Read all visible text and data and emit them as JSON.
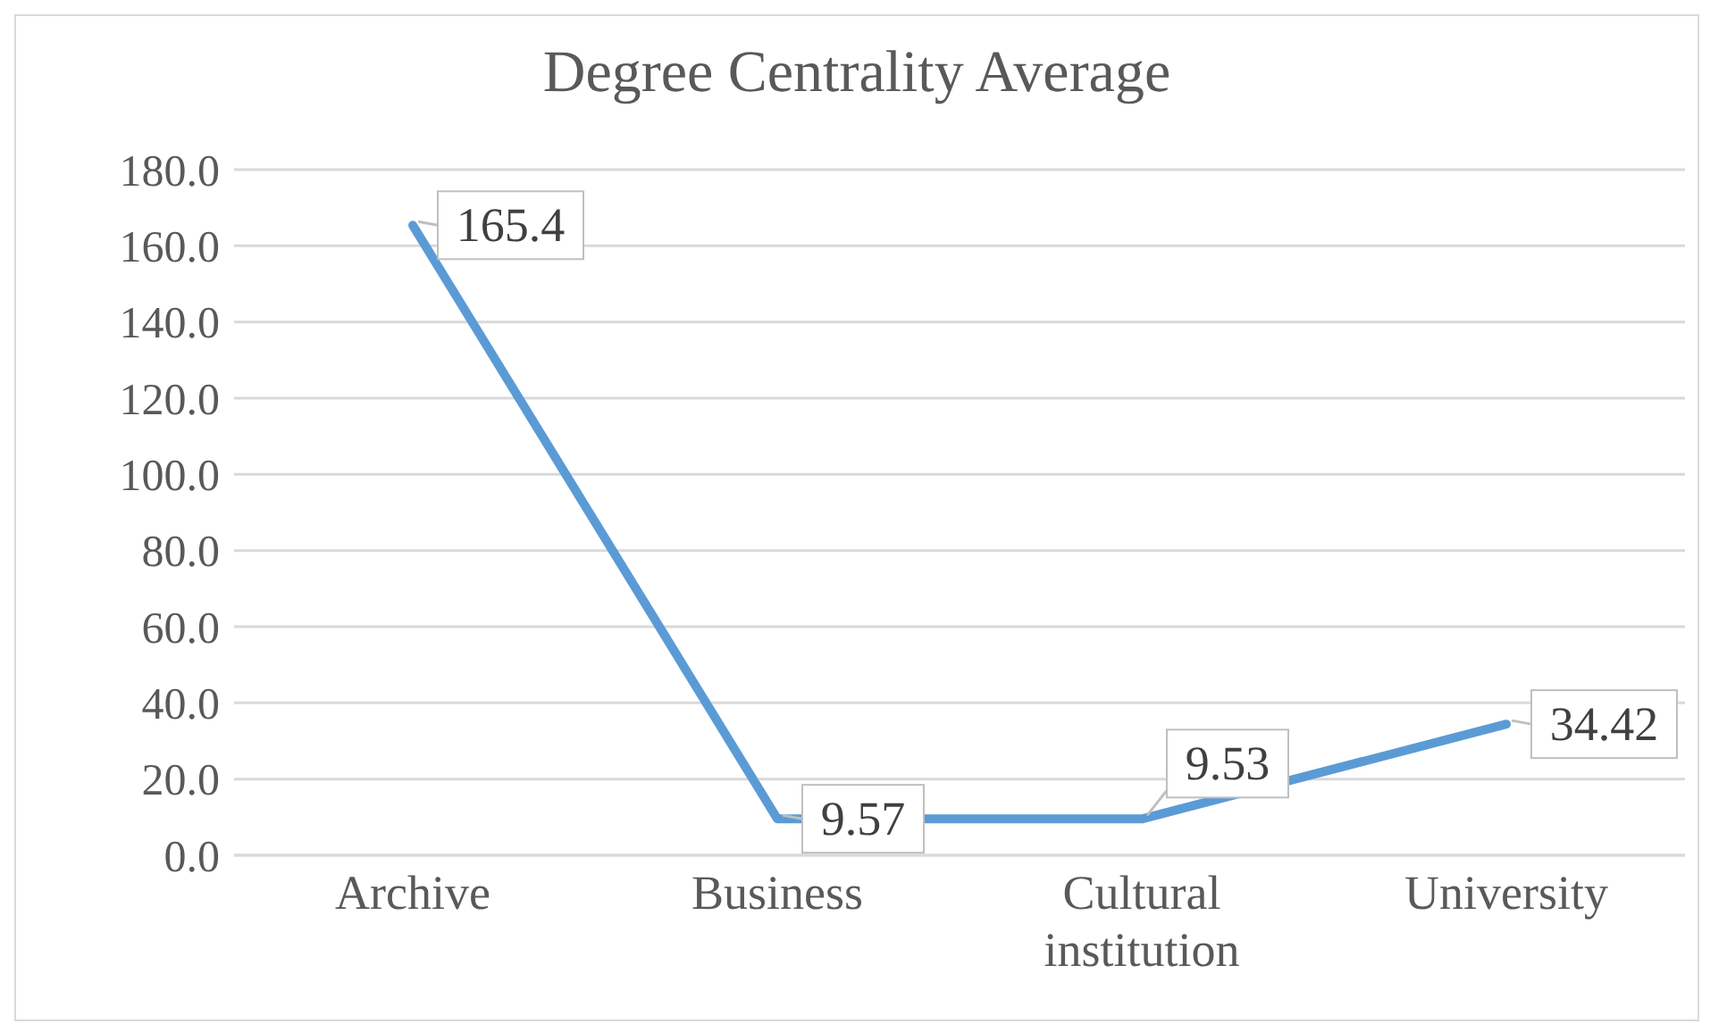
{
  "chart_data": {
    "type": "line",
    "title": "Degree Centrality Average",
    "categories": [
      "Archive",
      "Business",
      "Cultural institution",
      "University"
    ],
    "series": [
      {
        "color": "#5b9bd5",
        "values": [
          165.4,
          9.57,
          9.53,
          34.42
        ]
      }
    ],
    "ylim": [
      0,
      180
    ],
    "yticks": [
      {
        "value": 0,
        "label": "0.0"
      },
      {
        "value": 20,
        "label": "20.0"
      },
      {
        "value": 40,
        "label": "40.0"
      },
      {
        "value": 60,
        "label": "60.0"
      },
      {
        "value": 80,
        "label": "80.0"
      },
      {
        "value": 100,
        "label": "100.0"
      },
      {
        "value": 120,
        "label": "120.0"
      },
      {
        "value": 140,
        "label": "140.0"
      },
      {
        "value": 160,
        "label": "160.0"
      },
      {
        "value": 180,
        "label": "180.0"
      }
    ],
    "grid": "y",
    "data_labels": true,
    "marker": "none",
    "line_style": "solid",
    "legend": false
  }
}
